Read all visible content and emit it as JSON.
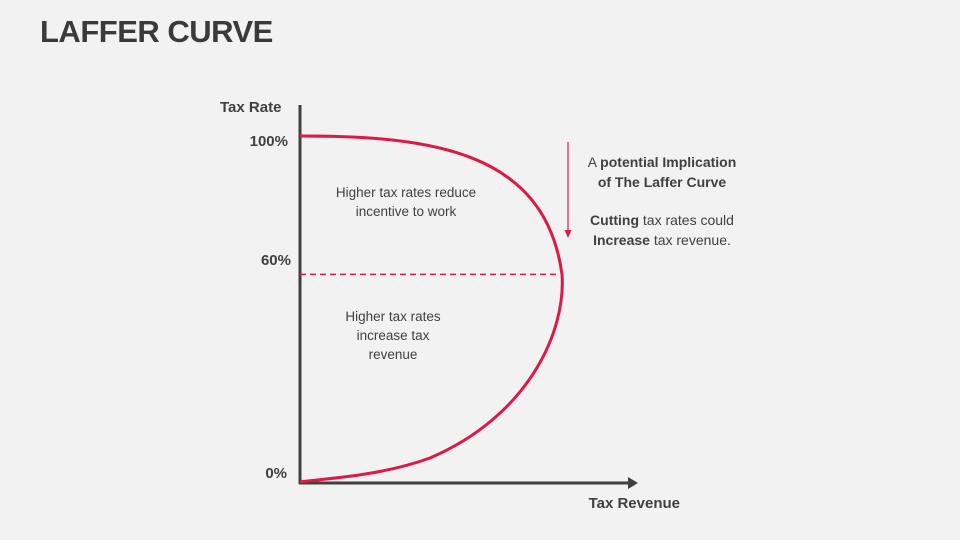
{
  "title": "LAFFER CURVE",
  "colors": {
    "curve": "#dc1a45",
    "axis": "#404040",
    "background": "#f2f2f2"
  },
  "chart_data": {
    "type": "line",
    "title": "",
    "xlabel": "Tax Revenue",
    "ylabel": "Tax Rate",
    "yticks": [
      "0%",
      "60%",
      "100%"
    ],
    "ylim": [
      0,
      100
    ],
    "peak_tax_rate": 60,
    "grid": false,
    "legend": "none",
    "annotations": {
      "upper": "Higher tax rates reduce incentive to work",
      "lower": "Higher tax rates increase tax revenue"
    }
  },
  "side_note": {
    "line1_prefix": "A ",
    "line1_bold": "potential Implication",
    "line2_bold": "of The Laffer Curve",
    "line3_bold": "Cutting",
    "line3_rest": " tax rates could",
    "line4_bold": "Increase",
    "line4_rest": " tax revenue."
  }
}
